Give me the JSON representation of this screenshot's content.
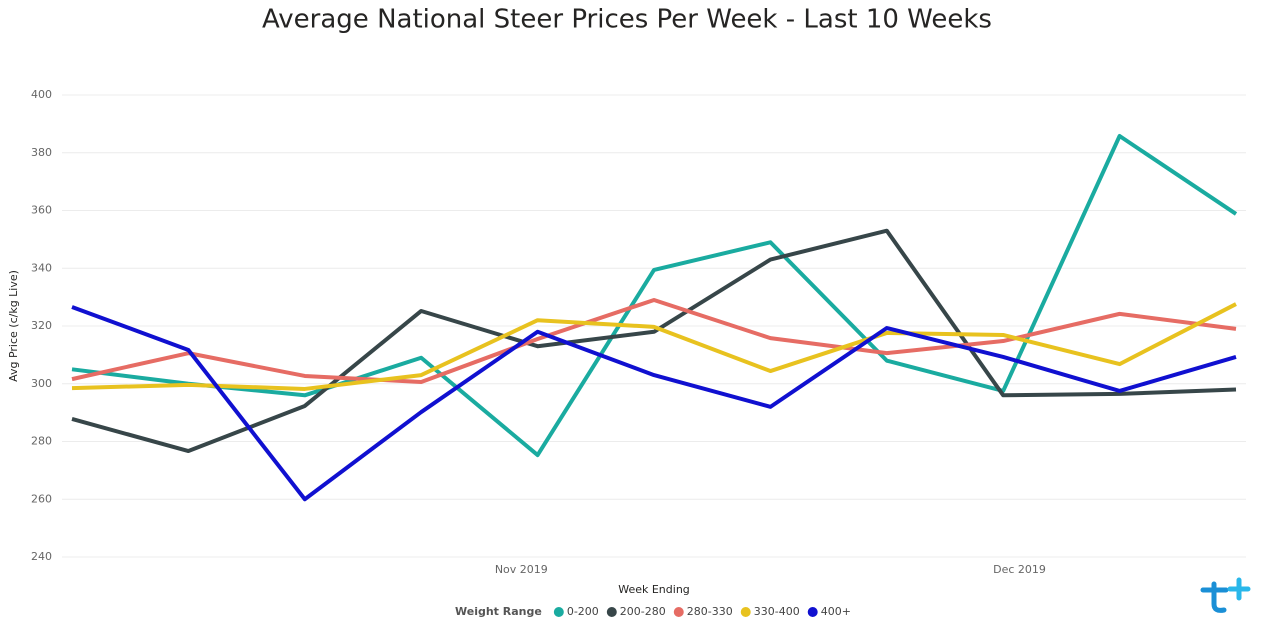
{
  "chart_data": {
    "type": "line",
    "title": "Average National Steer Prices Per Week - Last 10 Weeks",
    "x_label": "Week Ending",
    "y_label": "Avg Price (c/kg Live)",
    "legend_title": "Weight Range",
    "categories": [
      null,
      null,
      null,
      null,
      null,
      null,
      null,
      null,
      null,
      null,
      null
    ],
    "xticks": [
      {
        "value": 3.86,
        "label": "Nov 2019"
      },
      {
        "value": 8.14,
        "label": "Dec 2019"
      }
    ],
    "ylim": [
      240,
      400
    ],
    "yticks": [
      240,
      260,
      280,
      300,
      320,
      340,
      360,
      380,
      400
    ],
    "grid": true,
    "legend": "bottom",
    "series": [
      {
        "name": "0-200",
        "color": "#1aaba0",
        "values": [
          305,
          300,
          296,
          309,
          275.3,
          339.4,
          349,
          308,
          297.5,
          385.8,
          358.8
        ]
      },
      {
        "name": "200-280",
        "color": "#374649",
        "values": [
          287.8,
          276.7,
          292.3,
          325.2,
          313,
          318,
          343,
          353,
          296,
          296.5,
          298
        ]
      },
      {
        "name": "280-330",
        "color": "#e66c64",
        "values": [
          301.6,
          310.6,
          302.7,
          300.6,
          315.5,
          329,
          315.8,
          310.6,
          314.8,
          324.2,
          319
        ]
      },
      {
        "name": "330-400",
        "color": "#e8c21f",
        "values": [
          298.5,
          299.6,
          298.2,
          303,
          322,
          319.7,
          304.4,
          317.6,
          316.9,
          306.8,
          327.6
        ]
      },
      {
        "name": "400+",
        "color": "#1010d0",
        "values": [
          326.6,
          311.7,
          260,
          290.2,
          318,
          303,
          292,
          319.3,
          309.3,
          297.5,
          309.3
        ]
      }
    ]
  }
}
